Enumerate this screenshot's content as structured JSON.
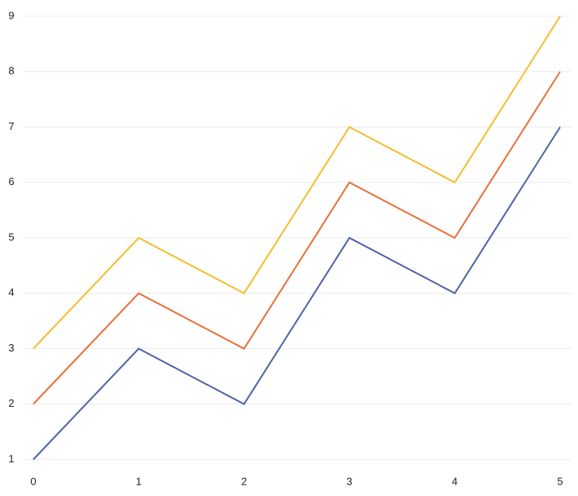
{
  "chart_data": {
    "type": "line",
    "x": [
      0,
      1,
      2,
      3,
      4,
      5
    ],
    "series": [
      {
        "color": "#5062a8",
        "values": [
          1,
          3,
          2,
          5,
          4,
          7
        ]
      },
      {
        "color": "#e8703a",
        "values": [
          2,
          4,
          3,
          6,
          5,
          8
        ]
      },
      {
        "color": "#f5bd2c",
        "values": [
          3,
          5,
          4,
          7,
          6,
          9
        ]
      }
    ],
    "xlim": [
      0,
      5
    ],
    "xticks": [
      0,
      1,
      2,
      3,
      4,
      5
    ],
    "ylim": [
      1,
      9
    ],
    "yticks": [
      1,
      2,
      3,
      4,
      5,
      6,
      7,
      8,
      9
    ],
    "grid": true
  }
}
